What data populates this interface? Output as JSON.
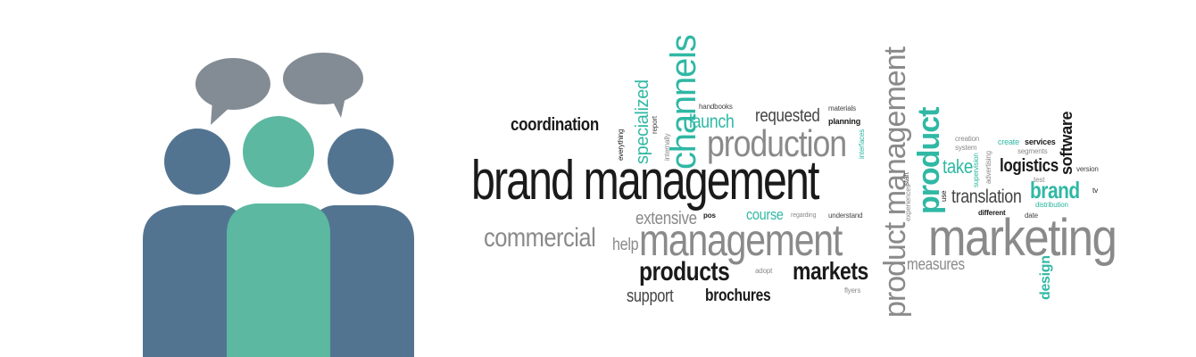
{
  "colors": {
    "side_person": "#537491",
    "center_person": "#5cb8a1",
    "speech_bubble": "#838c94",
    "word_dark": "#1a1a1a",
    "word_gray": "#8a8a8a",
    "word_teal": "#2fb8a4"
  },
  "icons": [
    "speech-bubble-left-icon",
    "speech-bubble-right-icon",
    "people-group-icon"
  ],
  "words": {
    "brand_management": "brand management",
    "management": "management",
    "marketing": "marketing",
    "product_management": "product management",
    "production": "production",
    "channels": "channels",
    "product": "product",
    "commercial": "commercial",
    "products": "products",
    "markets": "markets",
    "coordination": "coordination",
    "requested": "requested",
    "launch": "launch",
    "specialized": "specialized",
    "software": "software",
    "logistics": "logistics",
    "take": "take",
    "translation": "translation",
    "brand": "brand",
    "extensive": "extensive",
    "course": "course",
    "help": "help",
    "support": "support",
    "brochures": "brochures",
    "measures": "measures",
    "design": "design",
    "handbooks": "handbooks",
    "report": "report",
    "everything": "everything",
    "internally": "internally",
    "materials": "materials",
    "planning": "planning",
    "interfaces": "interfaces",
    "creation": "creation",
    "system": "system",
    "create": "create",
    "services": "services",
    "segments": "segments",
    "start": "start",
    "supervision": "supervision",
    "advertising": "advertising",
    "test": "test",
    "version": "version",
    "distribution": "distribution",
    "different": "different",
    "date": "date",
    "experiences": "experiences",
    "use": "use",
    "pos": "pos",
    "regarding": "regarding",
    "understand": "understand",
    "adopt": "adopt",
    "flyers": "flyers",
    "tv": "tv"
  }
}
